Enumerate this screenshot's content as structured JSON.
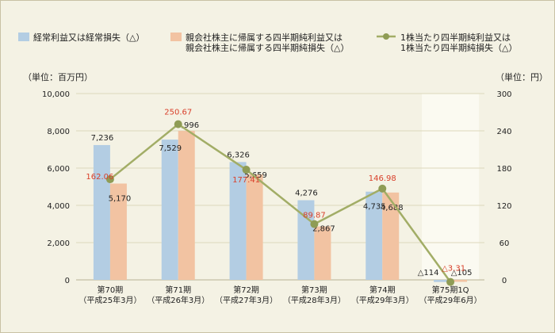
{
  "colors": {
    "background": "#f4f2e4",
    "bar1": "#b3cde3",
    "bar2": "#f2c3a2",
    "line": "#a2ad66",
    "point": "#8f9c55",
    "negative_text": "#d9402b",
    "highlight": "#fbfaf1",
    "text": "#222222",
    "grid": "#ddd8bc"
  },
  "chart_data": {
    "type": "bar",
    "categories": [
      {
        "line1": "第70期",
        "line2": "（平成25年3月）"
      },
      {
        "line1": "第71期",
        "line2": "（平成26年3月）"
      },
      {
        "line1": "第72期",
        "line2": "（平成27年3月）"
      },
      {
        "line1": "第73期",
        "line2": "（平成28年3月）"
      },
      {
        "line1": "第74期",
        "line2": "（平成29年3月）"
      },
      {
        "line1": "第75期1Q",
        "line2": "（平成29年6月）"
      }
    ],
    "highlight_category_index": 5,
    "series": [
      {
        "name": "経常利益又は経常損失（△）",
        "type": "bar",
        "axis": "left",
        "values": [
          7236,
          7529,
          6326,
          4276,
          4735,
          -114
        ],
        "labels": [
          "7,236",
          "7,529",
          "6,326",
          "4,276",
          "4,735",
          "△114"
        ]
      },
      {
        "name": "親会社株主に帰属する四半期純利益又は親会社株主に帰属する四半期純損失（△）",
        "name_lines": [
          "親会社株主に帰属する四半期純利益又は",
          "親会社株主に帰属する四半期純損失（△）"
        ],
        "type": "bar",
        "axis": "left",
        "values": [
          5170,
          7996,
          5659,
          2867,
          4688,
          -105
        ],
        "labels": [
          "5,170",
          "7,996",
          "5,659",
          "2,867",
          "4,688",
          "△105"
        ]
      },
      {
        "name": "1株当たり四半期純利益又は1株当たり四半期純損失（△）",
        "name_lines": [
          "1株当たり四半期純利益又は",
          "1株当たり四半期純損失（△）"
        ],
        "type": "line",
        "axis": "right",
        "values": [
          162.06,
          250.67,
          177.41,
          89.87,
          146.98,
          -3.31
        ],
        "labels": [
          "162.06",
          "250.67",
          "177.41",
          "89.87",
          "146.98",
          "△3.31"
        ]
      }
    ],
    "y_left": {
      "label": "（単位：百万円）",
      "range": [
        0,
        10000
      ],
      "ticks": [
        0,
        2000,
        4000,
        6000,
        8000,
        10000
      ],
      "tick_labels": [
        "0",
        "2,000",
        "4,000",
        "6,000",
        "8,000",
        "10,000"
      ]
    },
    "y_right": {
      "label": "（単位：円）",
      "range": [
        0,
        300
      ],
      "ticks": [
        0,
        60,
        120,
        180,
        240,
        300
      ],
      "tick_labels": [
        "0",
        "60",
        "120",
        "180",
        "240",
        "300"
      ]
    },
    "grid": true,
    "legend_position": "top"
  }
}
